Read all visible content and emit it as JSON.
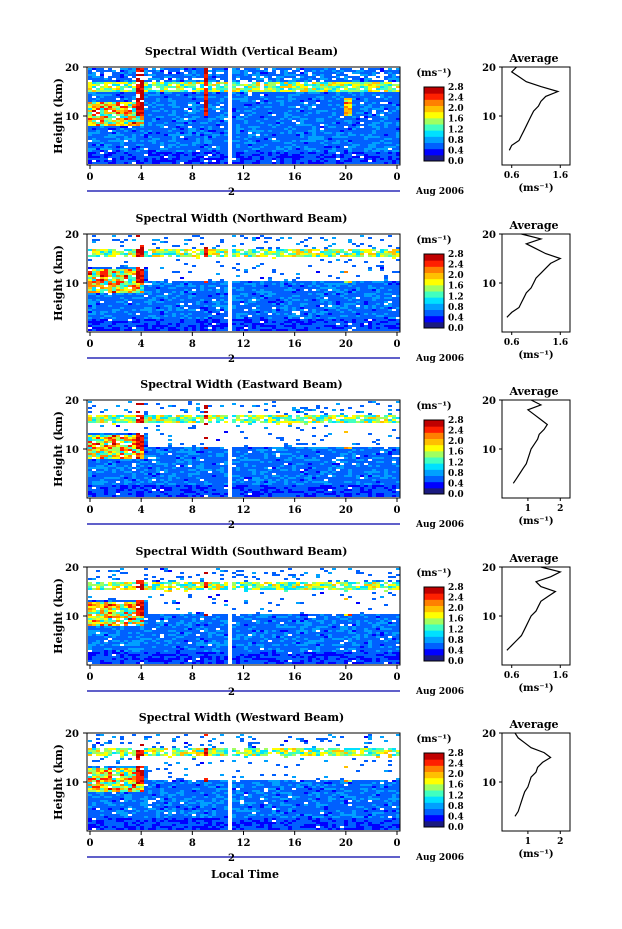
{
  "figure": {
    "xlabel": "Local Time",
    "date_label": "Aug 2006",
    "ylabel": "Height (km)",
    "avg_title": "Average",
    "cbar_unit": "(ms⁻¹)",
    "avg_xunit": "(ms⁻¹)",
    "x_ticks": [
      "0",
      "4",
      "8",
      "12",
      "16",
      "20",
      "0"
    ],
    "day_marker": "2",
    "colormap": [
      "#1a1a80",
      "#0000ff",
      "#0060ff",
      "#00a0ff",
      "#00e0ff",
      "#40ffc0",
      "#a0ff60",
      "#ffff00",
      "#ffc000",
      "#ff8000",
      "#ff2000",
      "#c00000"
    ]
  },
  "chart_data": [
    {
      "type": "heatmap",
      "title": "Spectral Width (Vertical Beam)",
      "x": [
        "0",
        "4",
        "8",
        "12",
        "16",
        "20",
        "0"
      ],
      "ylim": [
        0,
        20
      ],
      "y_ticks": [
        "20",
        "10"
      ],
      "colorbar_ticks": [
        "2.8",
        "2.4",
        "2.0",
        "1.6",
        "1.2",
        "0.8",
        "0.4",
        "0.0"
      ],
      "colorbar_range": [
        0.0,
        2.8
      ],
      "average": {
        "x_ticks": [
          "0.6",
          "1.6"
        ],
        "xlim": [
          0.4,
          1.8
        ],
        "height": [
          3,
          4,
          5,
          6,
          7,
          8,
          9,
          10,
          11,
          12,
          13,
          14,
          15,
          16,
          17,
          18,
          19,
          20
        ],
        "value": [
          0.55,
          0.6,
          0.75,
          0.8,
          0.85,
          0.9,
          0.95,
          1.0,
          1.05,
          1.15,
          1.2,
          1.3,
          1.55,
          1.2,
          0.9,
          0.75,
          0.6,
          0.7
        ]
      }
    },
    {
      "type": "heatmap",
      "title": "Spectral Width (Northward Beam)",
      "x": [
        "0",
        "4",
        "8",
        "12",
        "16",
        "20",
        "0"
      ],
      "ylim": [
        0,
        20
      ],
      "y_ticks": [
        "20",
        "10"
      ],
      "colorbar_ticks": [
        "2.8",
        "2.4",
        "2.0",
        "1.6",
        "1.2",
        "0.8",
        "0.4",
        "0.0"
      ],
      "colorbar_range": [
        0.0,
        2.8
      ],
      "average": {
        "x_ticks": [
          "0.6",
          "1.6"
        ],
        "xlim": [
          0.4,
          1.8
        ],
        "height": [
          3,
          4,
          5,
          6,
          7,
          8,
          9,
          10,
          11,
          12,
          13,
          14,
          15,
          16,
          17,
          18,
          19,
          20
        ],
        "value": [
          0.5,
          0.6,
          0.75,
          0.8,
          0.85,
          0.9,
          1.0,
          1.05,
          1.1,
          1.2,
          1.3,
          1.4,
          1.6,
          1.3,
          1.1,
          0.9,
          1.2,
          0.8
        ]
      }
    },
    {
      "type": "heatmap",
      "title": "Spectral Width (Eastward Beam)",
      "x": [
        "0",
        "4",
        "8",
        "12",
        "16",
        "20",
        "0"
      ],
      "ylim": [
        0,
        20
      ],
      "y_ticks": [
        "20",
        "10"
      ],
      "colorbar_ticks": [
        "2.8",
        "2.4",
        "2.0",
        "1.6",
        "1.2",
        "0.8",
        "0.4",
        "0.0"
      ],
      "colorbar_range": [
        0.0,
        2.8
      ],
      "average": {
        "x_ticks": [
          "1",
          "2"
        ],
        "xlim": [
          0.2,
          2.3
        ],
        "height": [
          3,
          4,
          5,
          6,
          7,
          8,
          9,
          10,
          11,
          12,
          13,
          14,
          15,
          16,
          17,
          18,
          19,
          20
        ],
        "value": [
          0.55,
          0.65,
          0.75,
          0.85,
          0.95,
          1.0,
          1.05,
          1.1,
          1.2,
          1.3,
          1.35,
          1.5,
          1.6,
          1.4,
          1.2,
          1.0,
          1.4,
          1.1
        ]
      }
    },
    {
      "type": "heatmap",
      "title": "Spectral Width (Southward Beam)",
      "x": [
        "0",
        "4",
        "8",
        "12",
        "16",
        "20",
        "0"
      ],
      "ylim": [
        0,
        20
      ],
      "y_ticks": [
        "20",
        "10"
      ],
      "colorbar_ticks": [
        "2.8",
        "2.4",
        "2.0",
        "1.6",
        "1.2",
        "0.8",
        "0.4",
        "0.0"
      ],
      "colorbar_range": [
        0.0,
        2.8
      ],
      "average": {
        "x_ticks": [
          "0.6",
          "1.6"
        ],
        "xlim": [
          0.4,
          1.8
        ],
        "height": [
          3,
          4,
          5,
          6,
          7,
          8,
          9,
          10,
          11,
          12,
          13,
          14,
          15,
          16,
          17,
          18,
          19,
          20
        ],
        "value": [
          0.5,
          0.6,
          0.7,
          0.8,
          0.85,
          0.9,
          0.95,
          1.0,
          1.1,
          1.15,
          1.2,
          1.35,
          1.5,
          1.2,
          1.1,
          1.4,
          1.6,
          1.2
        ]
      }
    },
    {
      "type": "heatmap",
      "title": "Spectral Width (Westward Beam)",
      "x": [
        "0",
        "4",
        "8",
        "12",
        "16",
        "20",
        "0"
      ],
      "ylim": [
        0,
        20
      ],
      "y_ticks": [
        "20",
        "10"
      ],
      "colorbar_ticks": [
        "2.8",
        "2.4",
        "2.0",
        "1.6",
        "1.2",
        "0.8",
        "0.4",
        "0.0"
      ],
      "colorbar_range": [
        0.0,
        2.8
      ],
      "average": {
        "x_ticks": [
          "1",
          "2"
        ],
        "xlim": [
          0.2,
          2.3
        ],
        "height": [
          3,
          4,
          5,
          6,
          7,
          8,
          9,
          10,
          11,
          12,
          13,
          14,
          15,
          16,
          17,
          18,
          19,
          20
        ],
        "value": [
          0.6,
          0.7,
          0.75,
          0.8,
          0.85,
          0.9,
          1.0,
          1.05,
          1.1,
          1.25,
          1.3,
          1.45,
          1.7,
          1.5,
          1.1,
          0.9,
          0.7,
          0.6
        ]
      }
    }
  ]
}
